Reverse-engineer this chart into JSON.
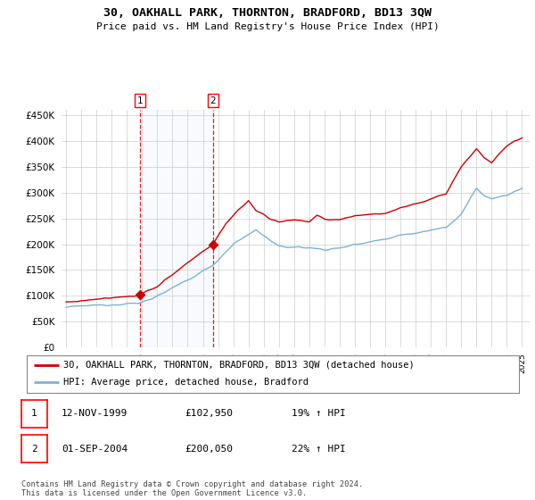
{
  "title": "30, OAKHALL PARK, THORNTON, BRADFORD, BD13 3QW",
  "subtitle": "Price paid vs. HM Land Registry's House Price Index (HPI)",
  "legend_line1": "30, OAKHALL PARK, THORNTON, BRADFORD, BD13 3QW (detached house)",
  "legend_line2": "HPI: Average price, detached house, Bradford",
  "sale1_label": "1",
  "sale1_date": "12-NOV-1999",
  "sale1_price": "£102,950",
  "sale1_hpi": "19% ↑ HPI",
  "sale2_label": "2",
  "sale2_date": "01-SEP-2004",
  "sale2_price": "£200,050",
  "sale2_hpi": "22% ↑ HPI",
  "footer": "Contains HM Land Registry data © Crown copyright and database right 2024.\nThis data is licensed under the Open Government Licence v3.0.",
  "hpi_color": "#7ab3d4",
  "price_color": "#cc0000",
  "vline_color": "#cc0000",
  "background_color": "#ffffff",
  "grid_color": "#cccccc",
  "sale1_x": 1999.87,
  "sale1_y": 102950,
  "sale2_x": 2004.67,
  "sale2_y": 200050,
  "ylim": [
    0,
    460000
  ],
  "xlim": [
    1994.7,
    2025.5
  ],
  "yticks": [
    0,
    50000,
    100000,
    150000,
    200000,
    250000,
    300000,
    350000,
    400000,
    450000
  ],
  "ytick_labels": [
    "£0",
    "£50K",
    "£100K",
    "£150K",
    "£200K",
    "£250K",
    "£300K",
    "£350K",
    "£400K",
    "£450K"
  ]
}
